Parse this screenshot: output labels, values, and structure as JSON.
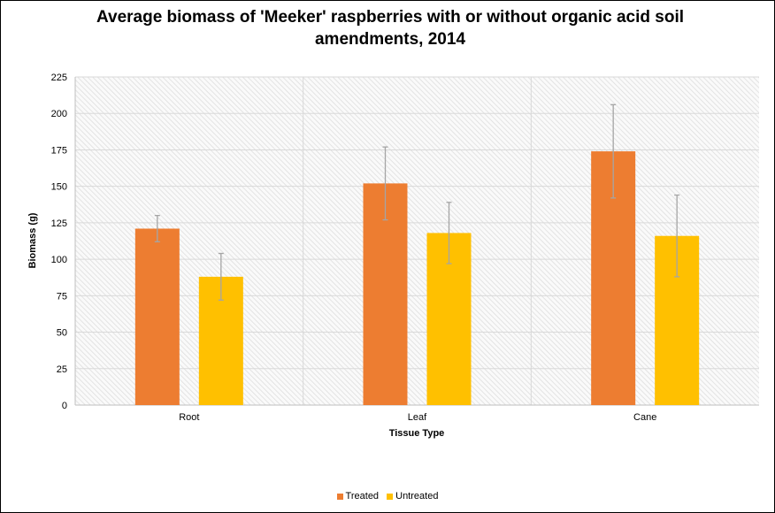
{
  "chart_data": {
    "type": "bar",
    "title": "Average biomass of 'Meeker' raspberries with or without organic acid soil amendments, 2014",
    "xlabel": "Tissue Type",
    "ylabel": "Biomass (g)",
    "ylim": [
      0,
      225
    ],
    "yticks": [
      0,
      25,
      50,
      75,
      100,
      125,
      150,
      175,
      200,
      225
    ],
    "grid": true,
    "legend_position": "bottom",
    "categories": [
      "Root",
      "Leaf",
      "Cane"
    ],
    "series": [
      {
        "name": "Treated",
        "color": "#ED7D31",
        "values": [
          121,
          152,
          174
        ],
        "error": [
          9,
          25,
          32
        ]
      },
      {
        "name": "Untreated",
        "color": "#FFC000",
        "values": [
          88,
          118,
          116
        ],
        "error": [
          16,
          21,
          28
        ]
      }
    ]
  }
}
